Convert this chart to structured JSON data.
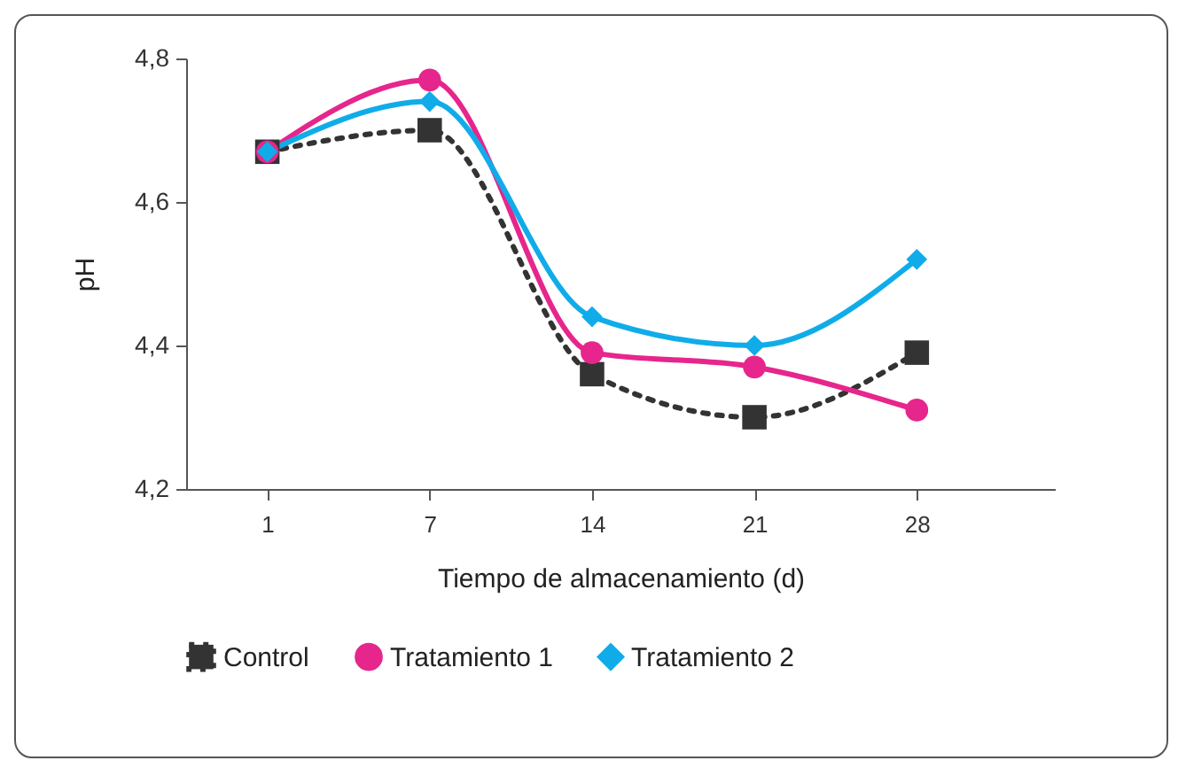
{
  "chart_data": {
    "type": "line",
    "xlabel": "Tiempo de almacenamiento (d)",
    "ylabel": "pH",
    "categories": [
      "1",
      "7",
      "14",
      "21",
      "28"
    ],
    "series": [
      {
        "name": "Control",
        "color": "#333333",
        "values": [
          4.67,
          4.7,
          4.36,
          4.3,
          4.39
        ],
        "marker": "square",
        "line_style": "dotted"
      },
      {
        "name": "Tratamiento 1",
        "color": "#e6268c",
        "values": [
          4.67,
          4.77,
          4.39,
          4.37,
          4.31
        ],
        "marker": "circle",
        "line_style": "solid"
      },
      {
        "name": "Tratamiento 2",
        "color": "#10acea",
        "values": [
          4.67,
          4.74,
          4.44,
          4.4,
          4.52
        ],
        "marker": "diamond",
        "line_style": "solid"
      }
    ],
    "ylim": [
      4.2,
      4.8
    ],
    "yticks": [
      {
        "value": 4.2,
        "label": "4,2"
      },
      {
        "value": 4.4,
        "label": "4,4"
      },
      {
        "value": 4.6,
        "label": "4,6"
      },
      {
        "value": 4.8,
        "label": "4,8"
      }
    ],
    "grid": false,
    "legend": "bottom"
  }
}
